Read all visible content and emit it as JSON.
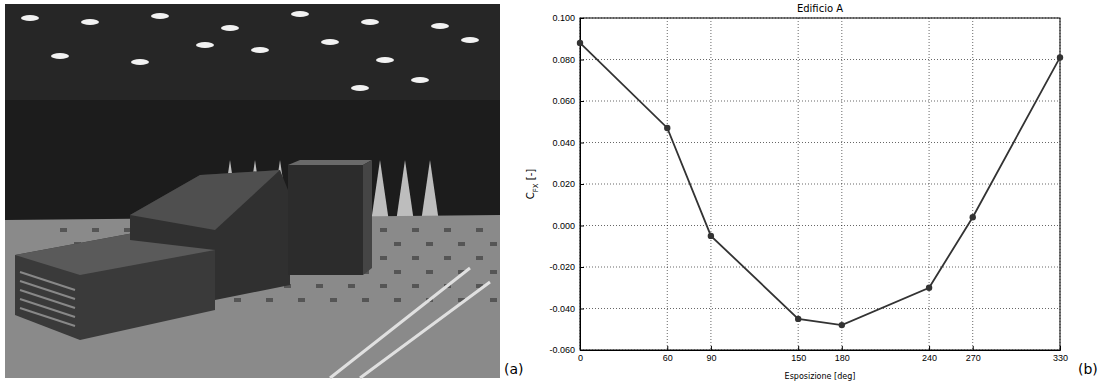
{
  "panel_labels": [
    "(a)",
    "(b)"
  ],
  "chart_data": {
    "type": "line",
    "title": "Edificio A",
    "xlabel": "Esposizione [deg]",
    "ylabel": "CFX [-]",
    "x": [
      0,
      60,
      90,
      150,
      180,
      240,
      270,
      330
    ],
    "values": [
      0.088,
      0.047,
      -0.005,
      -0.045,
      -0.048,
      -0.03,
      0.004,
      0.081
    ],
    "color": "#333333",
    "marker": "circle",
    "line_style": "solid",
    "xlim": [
      0,
      330
    ],
    "xticks": [
      0,
      60,
      90,
      150,
      180,
      240,
      270,
      330
    ],
    "ylim": [
      -0.06,
      0.1
    ],
    "yticks": [
      {
        "value": -0.06,
        "label": "-0.060"
      },
      {
        "value": -0.04,
        "label": "-0.040"
      },
      {
        "value": -0.02,
        "label": "-0.020"
      },
      {
        "value": 0,
        "label": "0.000"
      },
      {
        "value": 0.02,
        "label": "0.020"
      },
      {
        "value": 0.04,
        "label": "0.040"
      },
      {
        "value": 0.06,
        "label": "0.060"
      },
      {
        "value": 0.08,
        "label": "0.080"
      },
      {
        "value": 0.1,
        "label": "0.100"
      }
    ],
    "grid": true
  }
}
